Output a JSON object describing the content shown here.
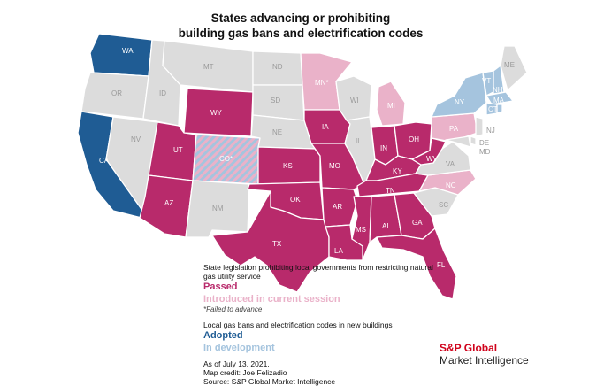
{
  "title": {
    "line1": "States advancing or prohibiting",
    "line2": "building gas bans and electrification codes"
  },
  "colors": {
    "passed": "#b82a6b",
    "introduced": "#eab2c9",
    "adopted": "#1f5c94",
    "in_development": "#a5c4de",
    "no_action": "#dcdcdc"
  },
  "states": {
    "WA": "WA",
    "OR": "OR",
    "CA": "CA",
    "NV": "NV",
    "ID": "ID",
    "MT": "MT",
    "WY": "WY",
    "UT": "UT",
    "CO": "CO*",
    "AZ": "AZ",
    "NM": "NM",
    "ND": "ND",
    "SD": "SD",
    "NE": "NE",
    "KS": "KS",
    "OK": "OK",
    "TX": "TX",
    "MN": "MN*",
    "IA": "IA",
    "MO": "MO",
    "AR": "AR",
    "LA": "LA",
    "WI": "WI",
    "IL": "IL",
    "MI": "MI",
    "IN": "IN",
    "OH": "OH",
    "KY": "KY",
    "TN": "TN",
    "MS": "MS",
    "AL": "AL",
    "GA": "GA",
    "FL": "FL",
    "SC": "SC",
    "NC": "NC",
    "VA": "VA",
    "WV": "WV",
    "PA": "PA",
    "NY": "NY",
    "VT": "VT",
    "NH": "NH",
    "MA": "MA",
    "ME": "ME",
    "CT": "CT",
    "RI": "RI",
    "NJ": "NJ",
    "DE": "DE",
    "MD": "MD"
  },
  "legend": {
    "prohibit_header": "State legislation prohibiting local governments from restricting natural gas utility service",
    "passed": "Passed",
    "introduced": "Introduced in current session",
    "failed_note": "*Failed to advance",
    "codes_header": "Local gas bans and electrification codes in new buildings",
    "adopted": "Adopted",
    "in_development": "In development"
  },
  "credits": {
    "date": "As of July 13, 2021.",
    "map_credit": "Map credit: Joe Felizadio",
    "source": "Source: S&P Global Market Intelligence"
  },
  "brand": {
    "line1": "S&P Global",
    "line2": "Market Intelligence"
  }
}
